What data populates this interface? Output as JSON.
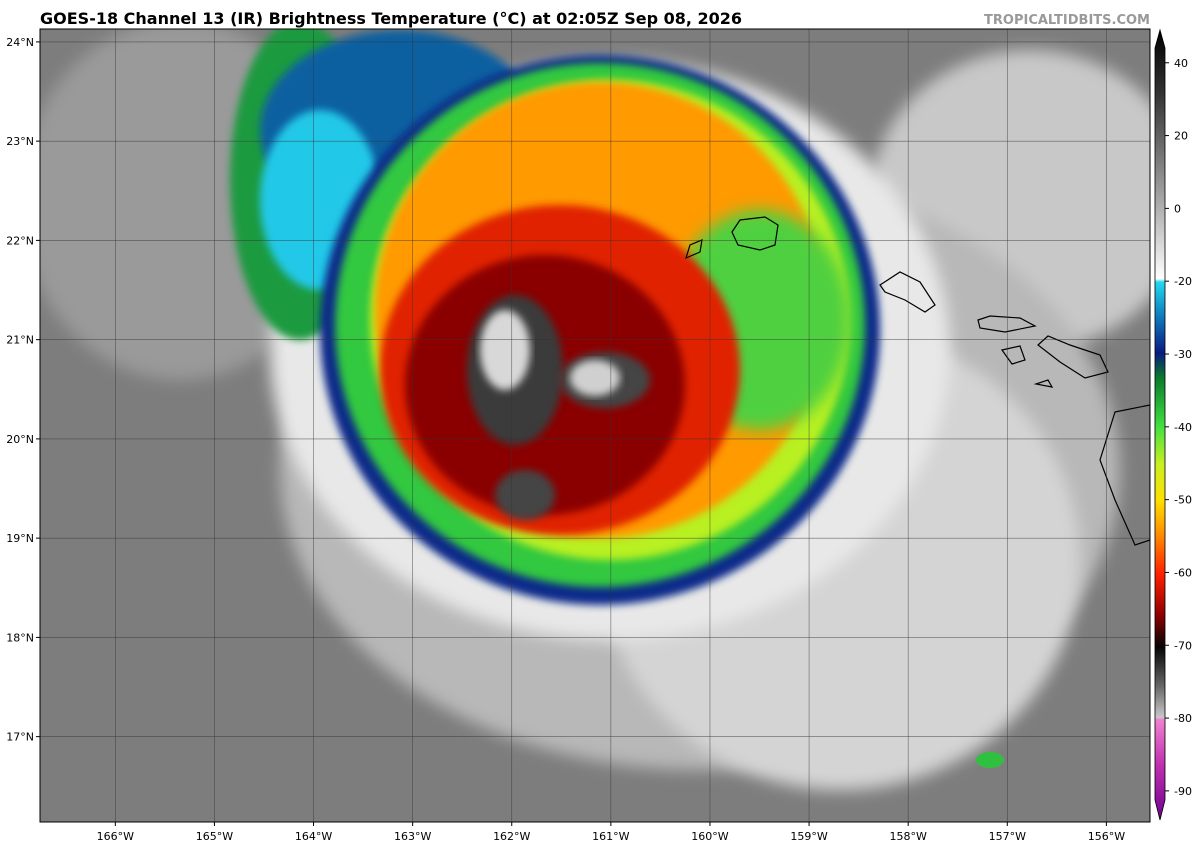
{
  "header": {
    "title": "GOES-18 Channel 13 (IR) Brightness Temperature (°C) at 02:05Z Sep 08, 2026",
    "site": "TROPICALTIDBITS.COM"
  },
  "map": {
    "lon_lim": [
      -166.76,
      -155.56
    ],
    "lat_lim": [
      16.14,
      24.13
    ],
    "lon_ticks": [
      {
        "value": -166,
        "label": "166°W"
      },
      {
        "value": -165,
        "label": "165°W"
      },
      {
        "value": -164,
        "label": "164°W"
      },
      {
        "value": -163,
        "label": "163°W"
      },
      {
        "value": -162,
        "label": "162°W"
      },
      {
        "value": -161,
        "label": "161°W"
      },
      {
        "value": -160,
        "label": "160°W"
      },
      {
        "value": -159,
        "label": "159°W"
      },
      {
        "value": -158,
        "label": "158°W"
      },
      {
        "value": -157,
        "label": "157°W"
      },
      {
        "value": -156,
        "label": "156°W"
      }
    ],
    "lat_ticks": [
      {
        "value": 24,
        "label": "24°N"
      },
      {
        "value": 23,
        "label": "23°N"
      },
      {
        "value": 22,
        "label": "22°N"
      },
      {
        "value": 21,
        "label": "21°N"
      },
      {
        "value": 20,
        "label": "20°N"
      },
      {
        "value": 19,
        "label": "19°N"
      },
      {
        "value": 18,
        "label": "18°N"
      },
      {
        "value": 17,
        "label": "17°N"
      }
    ]
  },
  "colorbar": {
    "lim": [
      -94,
      49
    ],
    "scale_break": -20,
    "ticks": [
      40,
      20,
      0,
      -20,
      -30,
      -40,
      -50,
      -60,
      -70,
      -80,
      -90
    ]
  }
}
